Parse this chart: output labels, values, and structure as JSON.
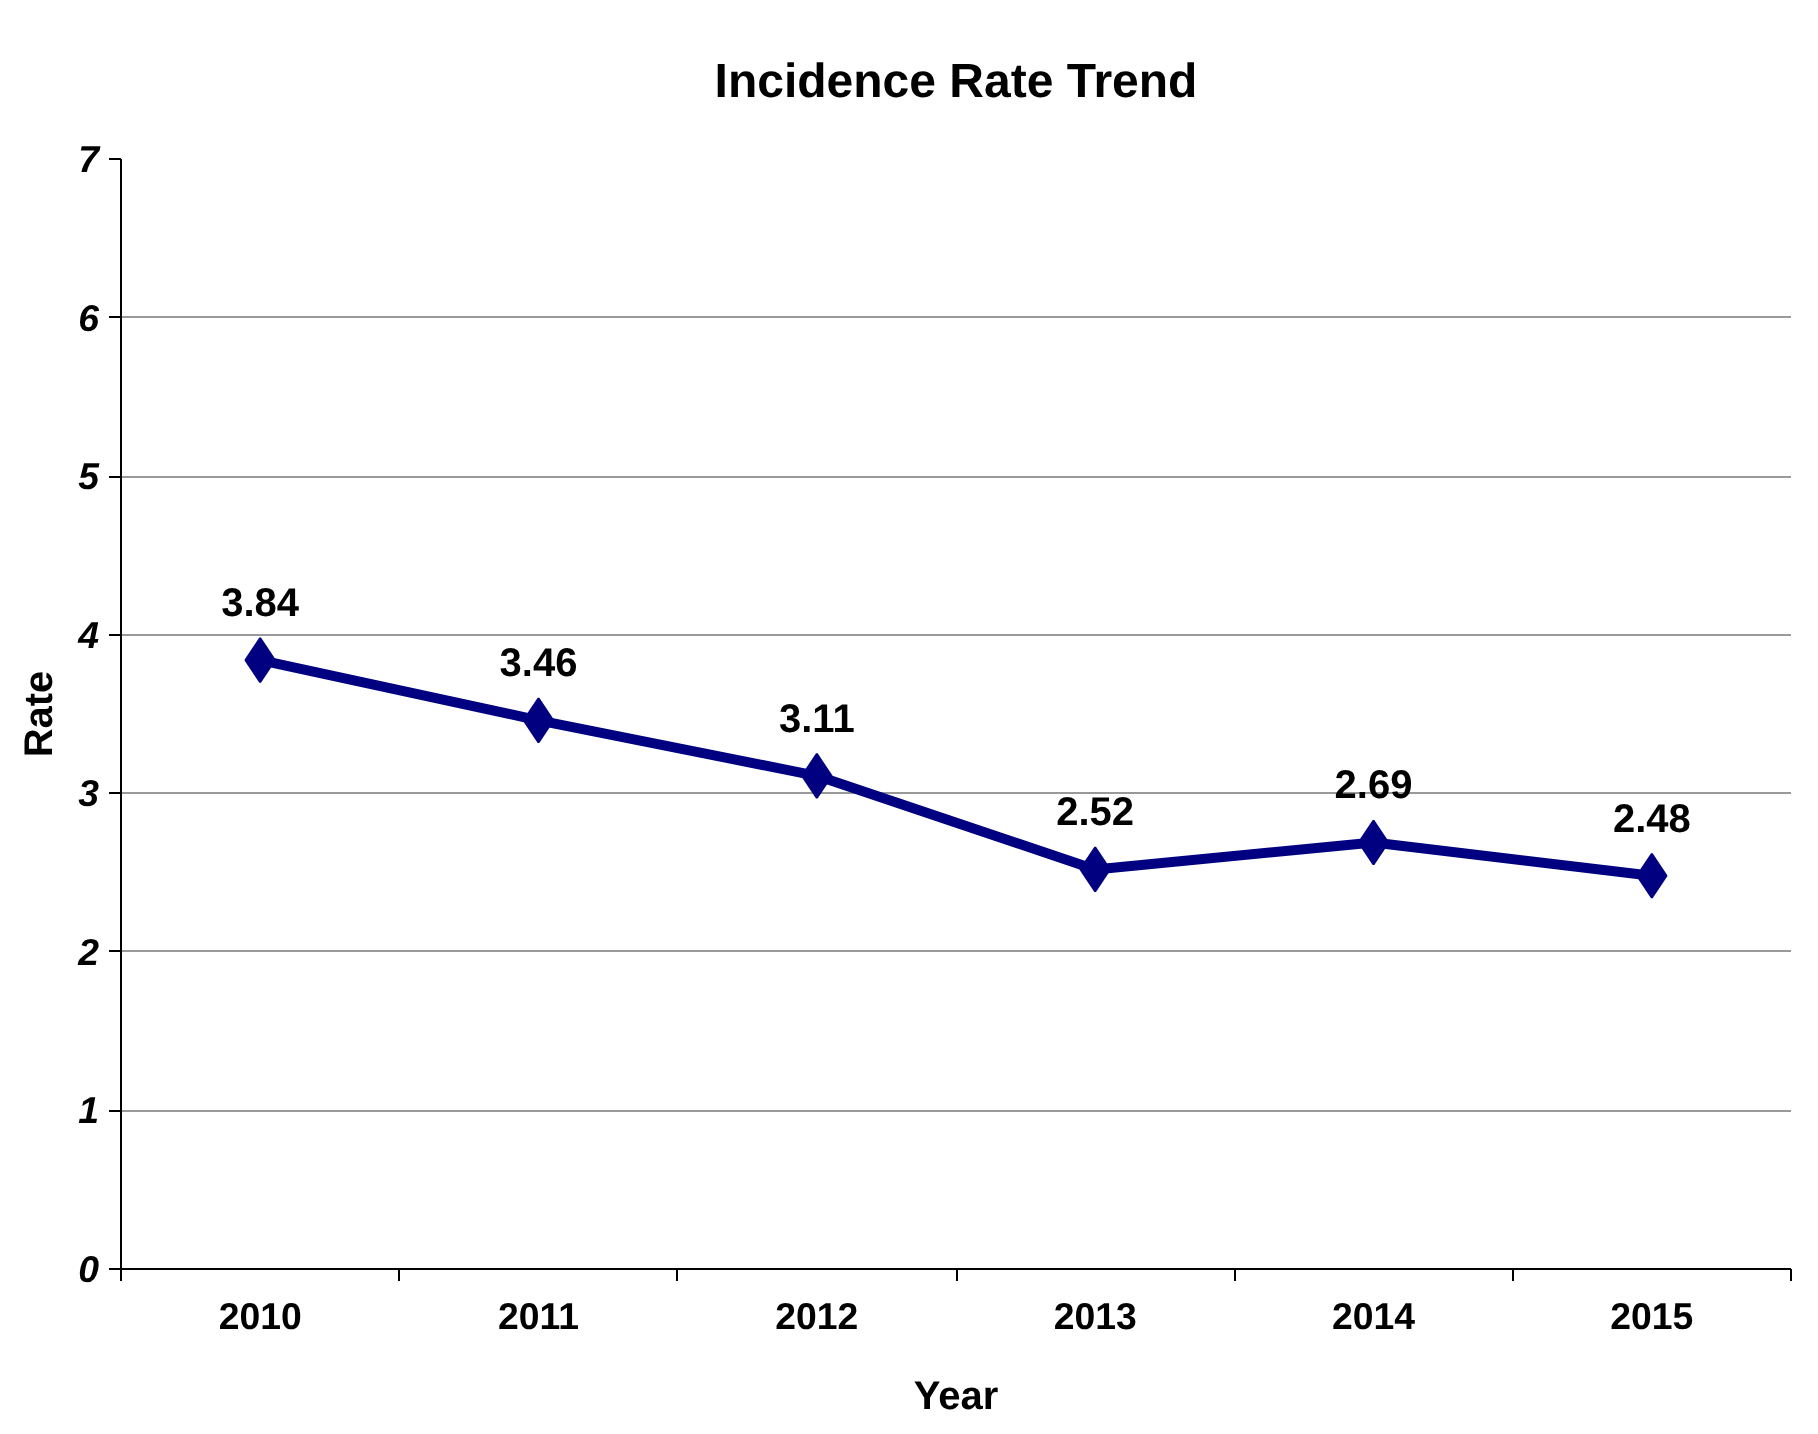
{
  "chart_data": {
    "type": "line",
    "title": "Incidence Rate Trend",
    "xlabel": "Year",
    "ylabel": "Rate",
    "categories": [
      "2010",
      "2011",
      "2012",
      "2013",
      "2014",
      "2015"
    ],
    "series": [
      {
        "color": "#000080",
        "values": [
          3.84,
          3.46,
          3.11,
          2.52,
          2.69,
          2.48
        ]
      }
    ],
    "ylim": [
      0,
      7
    ],
    "yticks": [
      0,
      1,
      2,
      3,
      4,
      5,
      6,
      7
    ],
    "grid": "y",
    "marker": "diamond",
    "line_style": "solid",
    "data_labels": true
  }
}
